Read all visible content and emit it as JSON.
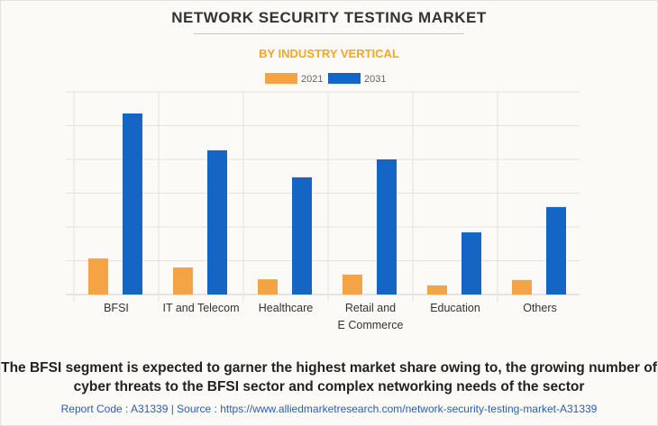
{
  "title": "NETWORK SECURITY TESTING MARKET",
  "subtitle": "BY INDUSTRY VERTICAL",
  "chart_data": {
    "type": "bar",
    "categories": [
      "BFSI",
      "IT and Telecom",
      "Healthcare",
      "Retail and\nE Commerce",
      "Education",
      "Others"
    ],
    "series": [
      {
        "name": "2021",
        "color": "#f4a444",
        "values": [
          1.07,
          0.8,
          0.45,
          0.59,
          0.27,
          0.43
        ]
      },
      {
        "name": "2031",
        "color": "#1565c4",
        "values": [
          5.36,
          4.27,
          3.47,
          4.0,
          1.84,
          2.59
        ]
      }
    ],
    "ylim": [
      0,
      6
    ],
    "grid": true,
    "y_tick_labels_shown": false,
    "legend_placement": "top-center"
  },
  "caption": "The BFSI segment is expected to garner the highest market share owing to, the growing number of cyber threats to the BFSI sector and complex networking needs of the sector",
  "source": "Report Code : A31339  |  Source : https://www.alliedmarketresearch.com/network-security-testing-market-A31339"
}
